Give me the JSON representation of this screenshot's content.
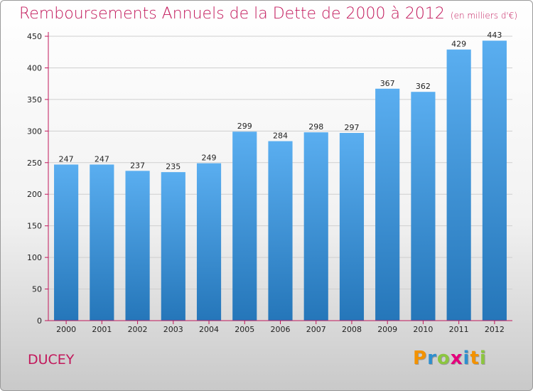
{
  "header": {
    "title": "Remboursements Annuels de la Dette de 2000 à 2012",
    "subtitle": "(en milliers d'€)"
  },
  "footer": {
    "place": "DUCEY",
    "brand_letters": [
      {
        "char": "P",
        "color": "#f39200"
      },
      {
        "char": "r",
        "color": "#2e8fcf"
      },
      {
        "char": "o",
        "color": "#8cc63f"
      },
      {
        "char": "x",
        "color": "#e4007c"
      },
      {
        "char": "i",
        "color": "#2e8fcf"
      },
      {
        "char": "t",
        "color": "#f39200"
      },
      {
        "char": "i",
        "color": "#8cc63f"
      }
    ]
  },
  "chart_data": {
    "type": "bar",
    "title": "Remboursements Annuels de la Dette de 2000 à 2012",
    "subtitle": "(en milliers d'€)",
    "categories": [
      "2000",
      "2001",
      "2002",
      "2003",
      "2004",
      "2005",
      "2006",
      "2007",
      "2008",
      "2009",
      "2010",
      "2011",
      "2012"
    ],
    "values": [
      247,
      247,
      237,
      235,
      249,
      299,
      284,
      298,
      297,
      367,
      362,
      429,
      443
    ],
    "ylim": [
      0,
      450
    ],
    "yticks": [
      0,
      50,
      100,
      150,
      200,
      250,
      300,
      350,
      400,
      450
    ],
    "grid": true,
    "data_labels": true,
    "bar_color_top": "#5aaef0",
    "bar_color_bottom": "#2576b9",
    "axis_color": "#c2185b",
    "grid_color": "#cfcfcf"
  }
}
